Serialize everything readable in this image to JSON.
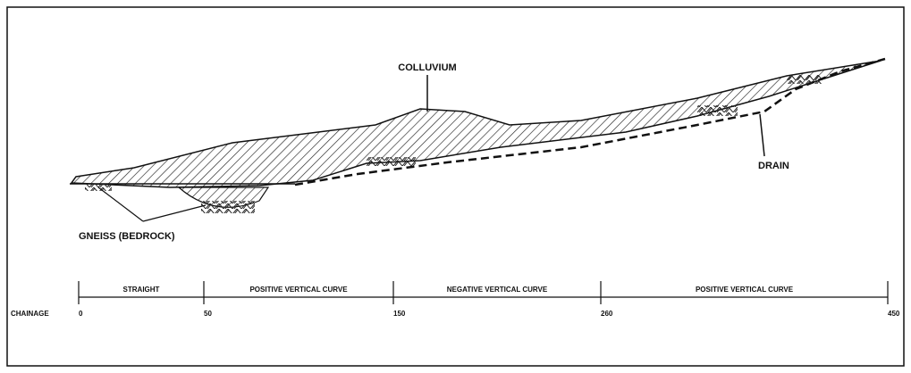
{
  "labels": {
    "colluvium": "COLLUVIUM",
    "drain": "DRAIN",
    "bedrock": "GNEISS (BEDROCK)"
  },
  "chainage": {
    "title": "CHAINAGE",
    "ticks": [
      0,
      50,
      150,
      260,
      450
    ],
    "segments": [
      "STRAIGHT",
      "POSITIVE VERTICAL CURVE",
      "NEGATIVE VERTICAL CURVE",
      "POSITIVE VERTICAL CURVE"
    ]
  }
}
